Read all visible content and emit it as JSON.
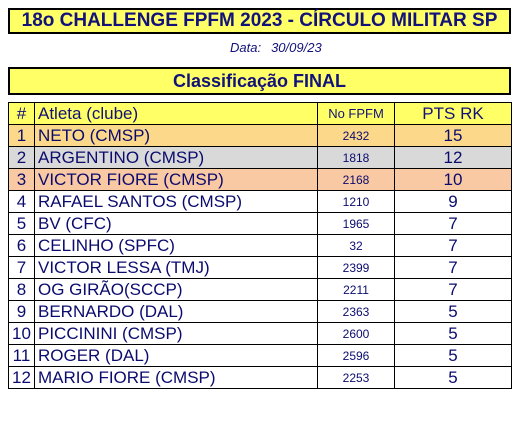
{
  "header": {
    "title": "18o CHALLENGE FPFM 2023 - CÍRCULO MILITAR SP",
    "date_label": "Data:",
    "date_value": "30/09/23",
    "subtitle": "Classificação FINAL"
  },
  "table": {
    "columns": [
      "#",
      "Atleta (clube)",
      "No FPFM",
      "PTS RK"
    ],
    "rows": [
      {
        "pos": "1",
        "name": "NETO (CMSP)",
        "fpfm": "2432",
        "pts": "15"
      },
      {
        "pos": "2",
        "name": "ARGENTINO (CMSP)",
        "fpfm": "1818",
        "pts": "12"
      },
      {
        "pos": "3",
        "name": "VICTOR FIORE (CMSP)",
        "fpfm": "2168",
        "pts": "10"
      },
      {
        "pos": "4",
        "name": "RAFAEL SANTOS (CMSP)",
        "fpfm": "1210",
        "pts": "9"
      },
      {
        "pos": "5",
        "name": "BV (CFC)",
        "fpfm": "1965",
        "pts": "7"
      },
      {
        "pos": "6",
        "name": "CELINHO (SPFC)",
        "fpfm": "32",
        "pts": "7"
      },
      {
        "pos": "7",
        "name": "VICTOR LESSA (TMJ)",
        "fpfm": "2399",
        "pts": "7"
      },
      {
        "pos": "8",
        "name": "OG GIRÃO(SCCP)",
        "fpfm": "2211",
        "pts": "7"
      },
      {
        "pos": "9",
        "name": "BERNARDO (DAL)",
        "fpfm": "2363",
        "pts": "5"
      },
      {
        "pos": "10",
        "name": "PICCININI (CMSP)",
        "fpfm": "2600",
        "pts": "5"
      },
      {
        "pos": "11",
        "name": "ROGER (DAL)",
        "fpfm": "2596",
        "pts": "5"
      },
      {
        "pos": "12",
        "name": "MARIO FIORE (CMSP)",
        "fpfm": "2253",
        "pts": "5"
      }
    ]
  },
  "colors": {
    "header_bg": "#ffff66",
    "first_place": "#fcd98a",
    "second_place": "#d9d9d9",
    "third_place": "#f9c9a3",
    "text": "#0b0b6e"
  }
}
